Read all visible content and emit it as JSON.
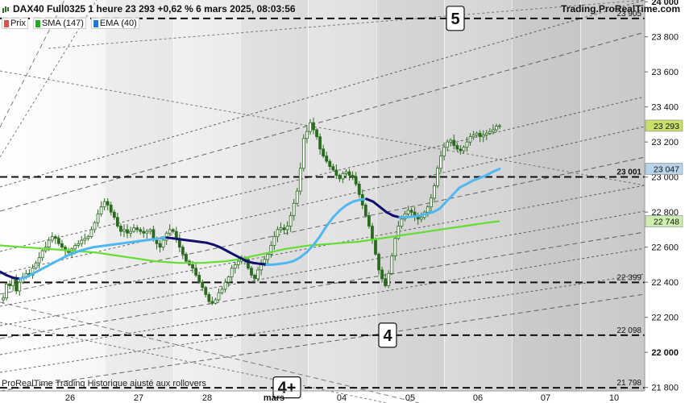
{
  "header": {
    "title": "DAX40 Full0325 1 heure 23 293 +0,62 % 6 mars 2025, 08:03:56",
    "site": "Trading.ProRealTime.com"
  },
  "legend": [
    {
      "label": "Prix",
      "color": "#d9534f"
    },
    {
      "label": "SMA (147)",
      "color": "#22aa22"
    },
    {
      "label": "EMA (40)",
      "color": "#2277dd"
    }
  ],
  "footer": "ProRealTime Trading Historique ajusté aux rollovers",
  "colors": {
    "candle": "#2b6b1f",
    "ema_rising": "#4fb8f0",
    "ema_falling": "#10106e",
    "sma": "#66dd33",
    "price_tag": "#c8e06a",
    "ema_tag": "#b9d4e8",
    "sma_tag": "#cdeeb0"
  },
  "chart_data": {
    "type": "candlestick",
    "y_axis": {
      "ylim": [
        21780,
        24010
      ],
      "ticks": [
        {
          "value": 24000,
          "label": "24 000",
          "bold": true
        },
        {
          "value": 23800,
          "label": "23 800"
        },
        {
          "value": 23600,
          "label": "23 600"
        },
        {
          "value": 23400,
          "label": "23 400"
        },
        {
          "value": 23200,
          "label": "23 200"
        },
        {
          "value": 23000,
          "label": "23 000"
        },
        {
          "value": 22800,
          "label": "22 800"
        },
        {
          "value": 22600,
          "label": "22 600"
        },
        {
          "value": 22400,
          "label": "22 400"
        },
        {
          "value": 22200,
          "label": "22 200"
        },
        {
          "value": 22000,
          "label": "22 000",
          "bold": true
        },
        {
          "value": 21800,
          "label": "21 800"
        }
      ]
    },
    "x_axis": {
      "day_labels": [
        "26",
        "27",
        "28",
        "mars",
        "04",
        "05",
        "06",
        "07",
        "10"
      ],
      "day_label_is_bold": [
        false,
        false,
        false,
        true,
        false,
        false,
        false,
        false,
        false
      ]
    },
    "levels": [
      {
        "value": 23905,
        "label": "23 905"
      },
      {
        "value": 23001,
        "label": "23 001",
        "bold": true
      },
      {
        "value": 22399,
        "label": "22 399"
      },
      {
        "value": 22098,
        "label": "22 098"
      },
      {
        "value": 21798,
        "label": "21 798"
      }
    ],
    "wave_labels": [
      "5",
      "4",
      "4+"
    ],
    "price_tags": [
      {
        "value": 23293,
        "label": "23 293",
        "series": "Prix"
      },
      {
        "value": 23047,
        "label": "23 047",
        "series": "EMA (40)"
      },
      {
        "value": 22748,
        "label": "22 748",
        "series": "SMA (147)"
      }
    ],
    "close_series": [
      22310,
      22390,
      22380,
      22420,
      22350,
      22400,
      22430,
      22450,
      22440,
      22480,
      22510,
      22540,
      22580,
      22600,
      22640,
      22660,
      22650,
      22620,
      22600,
      22580,
      22570,
      22590,
      22610,
      22620,
      22640,
      22650,
      22660,
      22700,
      22740,
      22790,
      22830,
      22860,
      22840,
      22800,
      22770,
      22720,
      22690,
      22700,
      22680,
      22690,
      22710,
      22700,
      22690,
      22680,
      22690,
      22700,
      22650,
      22620,
      22600,
      22640,
      22680,
      22700,
      22690,
      22650,
      22600,
      22560,
      22520,
      22500,
      22480,
      22440,
      22400,
      22370,
      22330,
      22290,
      22280,
      22300,
      22340,
      22360,
      22400,
      22430,
      22480,
      22500,
      22520,
      22540,
      22530,
      22480,
      22440,
      22420,
      22470,
      22510,
      22530,
      22560,
      22610,
      22660,
      22700,
      22710,
      22700,
      22720,
      22780,
      22850,
      22920,
      23050,
      23220,
      23260,
      23310,
      23270,
      23230,
      23160,
      23120,
      23090,
      23060,
      23040,
      23010,
      22990,
      23020,
      23030,
      23010,
      23000,
      22960,
      22900,
      22840,
      22780,
      22720,
      22640,
      22560,
      22470,
      22420,
      22380,
      22450,
      22550,
      22650,
      22720,
      22760,
      22790,
      22810,
      22800,
      22780,
      22760,
      22770,
      22800,
      22830,
      22880,
      22950,
      23050,
      23120,
      23170,
      23200,
      23210,
      23180,
      23160,
      23150,
      23170,
      23200,
      23230,
      23240,
      23250,
      23230,
      23240,
      23250,
      23260,
      23270,
      23290,
      23293
    ],
    "ema_series": [
      22460,
      22440,
      22425,
      22420,
      22430,
      22450,
      22470,
      22490,
      22510,
      22530,
      22550,
      22565,
      22580,
      22590,
      22600,
      22605,
      22610,
      22615,
      22620,
      22625,
      22630,
      22635,
      22640,
      22645,
      22650,
      22655,
      22650,
      22645,
      22640,
      22635,
      22630,
      22625,
      22615,
      22600,
      22580,
      22560,
      22540,
      22520,
      22510,
      22505,
      22500,
      22500,
      22505,
      22510,
      22520,
      22540,
      22570,
      22610,
      22660,
      22720,
      22770,
      22810,
      22840,
      22860,
      22870,
      22875,
      22860,
      22830,
      22800,
      22780,
      22770,
      22770,
      22775,
      22780,
      22790,
      22800,
      22820,
      22860,
      22900,
      22940,
      22960,
      22980,
      22995,
      23010,
      23030,
      23047
    ],
    "sma_series": [
      22610,
      22605,
      22600,
      22595,
      22590,
      22585,
      22580,
      22575,
      22570,
      22560,
      22550,
      22540,
      22530,
      22520,
      22515,
      22510,
      22510,
      22510,
      22515,
      22520,
      22530,
      22545,
      22560,
      22575,
      22590,
      22600,
      22610,
      22615,
      22620,
      22625,
      22630,
      22640,
      22650,
      22660,
      22670,
      22680,
      22690,
      22700,
      22710,
      22720,
      22730,
      22740,
      22748
    ]
  }
}
